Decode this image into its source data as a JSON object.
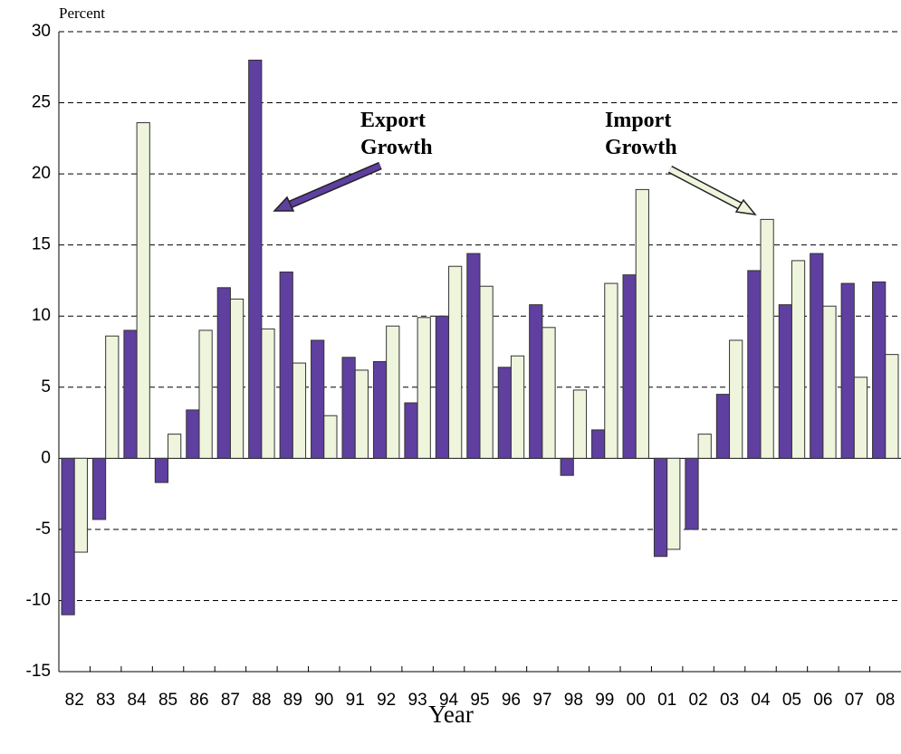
{
  "chart_data": {
    "type": "bar",
    "y_label": "Percent",
    "x_label": "Year",
    "categories": [
      "82",
      "83",
      "84",
      "85",
      "86",
      "87",
      "88",
      "89",
      "90",
      "91",
      "92",
      "93",
      "94",
      "95",
      "96",
      "97",
      "98",
      "99",
      "00",
      "01",
      "02",
      "03",
      "04",
      "05",
      "06",
      "07",
      "08"
    ],
    "series": [
      {
        "name": "Export Growth",
        "color": "#5f3f9f",
        "values": [
          -11,
          -4.3,
          9,
          -1.7,
          3.4,
          12,
          28,
          13.1,
          8.3,
          7.1,
          6.8,
          3.9,
          10,
          14.4,
          6.4,
          10.8,
          -1.2,
          2,
          12.9,
          -6.9,
          -5,
          4.5,
          13.2,
          10.8,
          14.4,
          12.3,
          12.4
        ]
      },
      {
        "name": "Import Growth",
        "color": "#eef5dc",
        "values": [
          -6.6,
          8.6,
          23.6,
          1.7,
          9,
          11.2,
          9.1,
          6.7,
          3,
          6.2,
          9.3,
          9.9,
          13.5,
          12.1,
          7.2,
          9.2,
          4.8,
          12.3,
          18.9,
          -6.4,
          1.7,
          8.3,
          16.8,
          13.9,
          10.7,
          5.7,
          7.3
        ]
      }
    ],
    "ylim": [
      -15,
      30
    ],
    "yticks": [
      -15,
      -10,
      -5,
      0,
      5,
      10,
      15,
      20,
      25,
      30
    ],
    "grid": true
  }
}
